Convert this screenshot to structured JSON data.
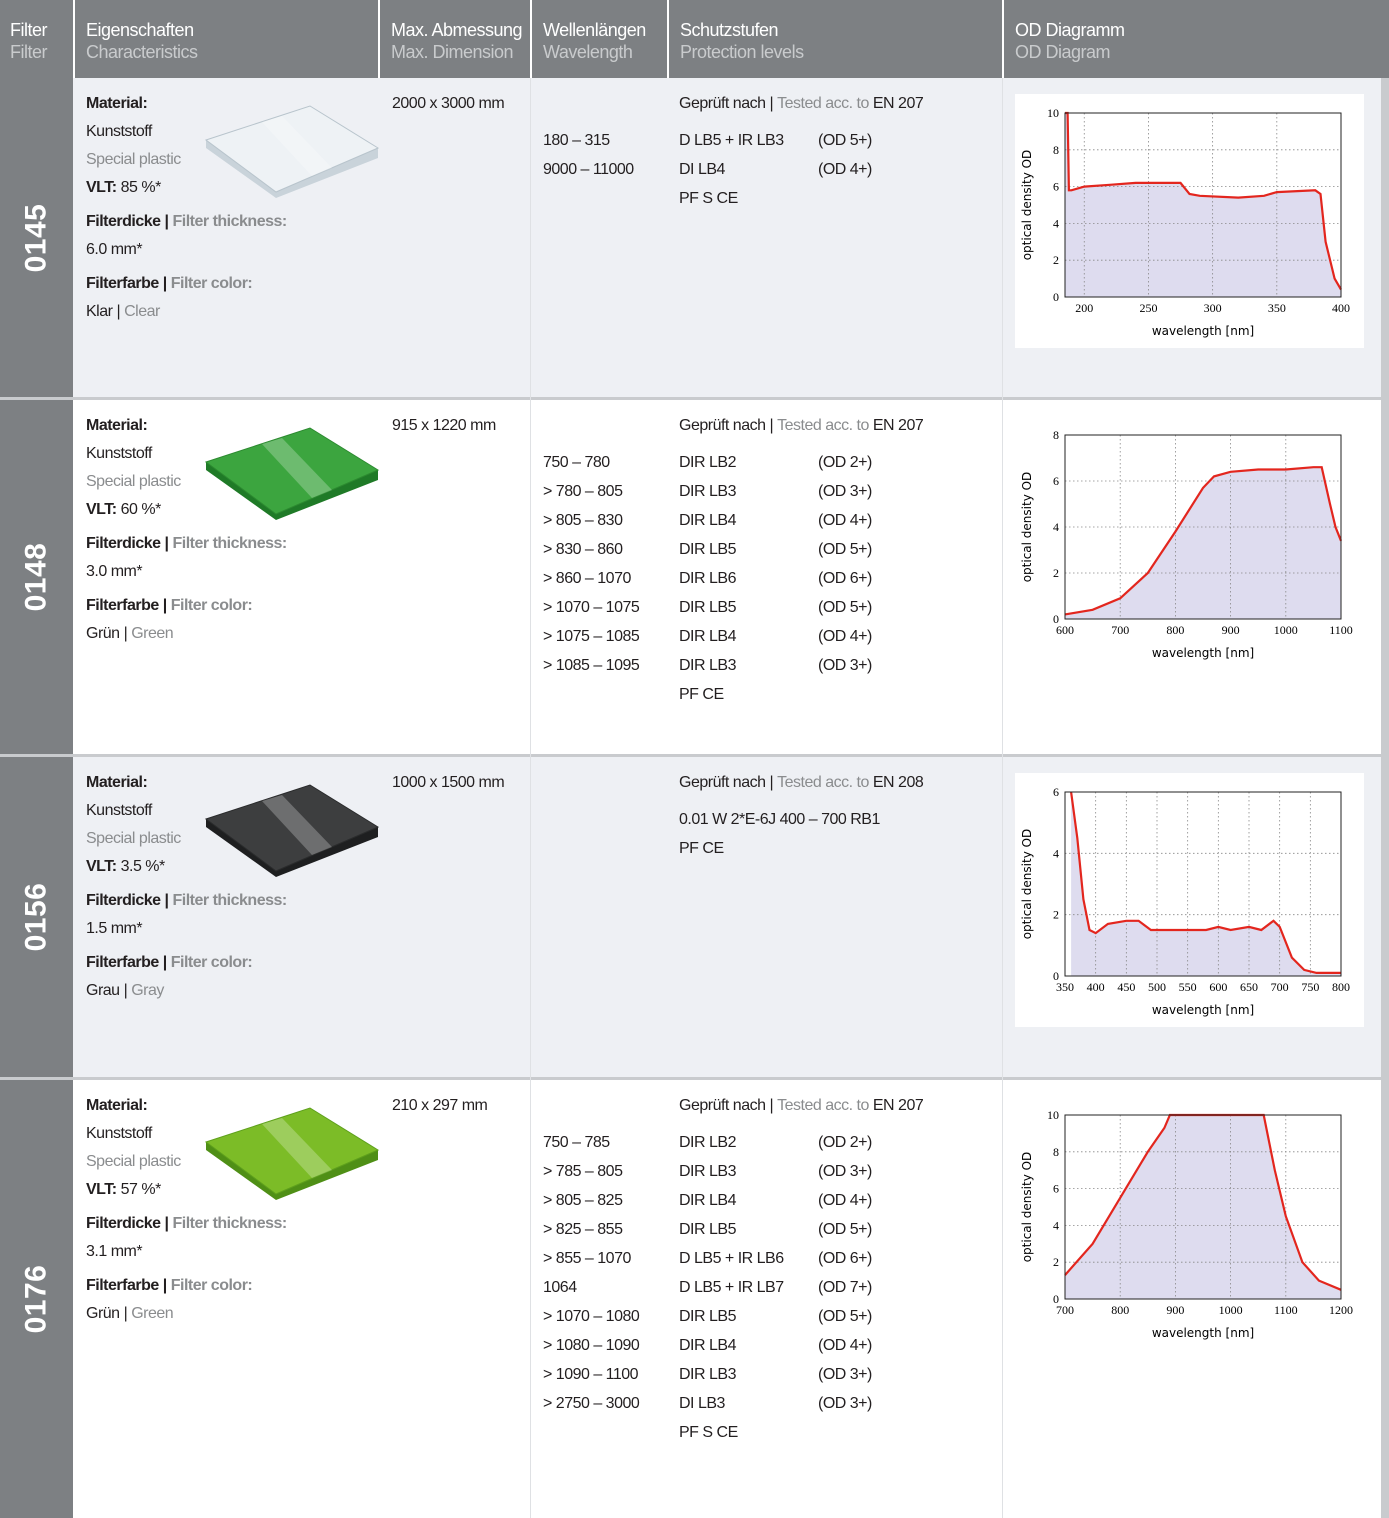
{
  "header": {
    "columns": [
      {
        "de": "Filter",
        "en": "Filter"
      },
      {
        "de": "Eigenschaften",
        "en": "Characteristics"
      },
      {
        "de": "Max. Abmessung",
        "en": "Max. Dimension"
      },
      {
        "de": "Wellenlängen",
        "en": "Wavelength"
      },
      {
        "de": "Schutzstufen",
        "en": "Protection levels"
      },
      {
        "de": "OD Diagramm",
        "en": "OD Diagram"
      }
    ]
  },
  "separator": "|",
  "rows": [
    {
      "id": "0145",
      "material_label": "Material:",
      "material_de": "Kunststoff",
      "material_en": "Special plastic",
      "vlt_label": "VLT:",
      "vlt": "85 %*",
      "thickness_label_de": "Filterdicke",
      "thickness_label_en": "Filter thickness:",
      "thickness": "6.0 mm*",
      "color_label_de": "Filterfarbe",
      "color_label_en": "Filter color:",
      "color_de": "Klar",
      "color_en": "Clear",
      "dimension": "2000 x 3000 mm",
      "tested": {
        "de": "Geprüft nach",
        "en": "Tested acc. to",
        "standard": "EN 207"
      },
      "levels": [
        {
          "wavelength": "180 – 315",
          "level": "D LB5 + IR LB3",
          "od": "(OD 5+)"
        },
        {
          "wavelength": "9000 – 11000",
          "level": "DI LB4",
          "od": "(OD 4+)"
        },
        {
          "level": "PF S CE"
        }
      ],
      "chart": {
        "type": "line",
        "y_label": "optical density OD",
        "x_label": "wavelength [nm]",
        "xlim": [
          185,
          400
        ],
        "xticks": [
          200,
          250,
          300,
          350,
          400
        ],
        "ylim": [
          0,
          10
        ],
        "yticks": [
          0,
          2,
          4,
          6,
          8,
          10
        ],
        "grid": true,
        "color": "#e3261e",
        "fill": "#dedcef",
        "x": [
          185,
          187,
          188,
          190,
          200,
          220,
          240,
          275,
          282,
          290,
          320,
          340,
          350,
          380,
          384,
          388,
          395,
          400
        ],
        "values": [
          10,
          10,
          5.8,
          5.8,
          6.0,
          6.1,
          6.2,
          6.2,
          5.6,
          5.5,
          5.4,
          5.5,
          5.7,
          5.8,
          5.6,
          3,
          1,
          0.4
        ]
      }
    },
    {
      "id": "0148",
      "material_label": "Material:",
      "material_de": "Kunststoff",
      "material_en": "Special plastic",
      "vlt_label": "VLT:",
      "vlt": "60 %*",
      "thickness_label_de": "Filterdicke",
      "thickness_label_en": "Filter thickness:",
      "thickness": "3.0 mm*",
      "color_label_de": "Filterfarbe",
      "color_label_en": "Filter color:",
      "color_de": "Grün",
      "color_en": "Green",
      "dimension": "915 x 1220 mm",
      "tested": {
        "de": "Geprüft nach",
        "en": "Tested acc. to",
        "standard": "EN 207"
      },
      "levels": [
        {
          "wavelength": "750 – 780",
          "level": "DIR LB2",
          "od": "(OD 2+)"
        },
        {
          "wavelength": "> 780 – 805",
          "level": "DIR LB3",
          "od": "(OD 3+)"
        },
        {
          "wavelength": "> 805 – 830",
          "level": "DIR LB4",
          "od": "(OD 4+)"
        },
        {
          "wavelength": "> 830 – 860",
          "level": "DIR LB5",
          "od": "(OD 5+)"
        },
        {
          "wavelength": "> 860 – 1070",
          "level": "DIR LB6",
          "od": "(OD 6+)"
        },
        {
          "wavelength": "> 1070 – 1075",
          "level": "DIR LB5",
          "od": "(OD 5+)"
        },
        {
          "wavelength": "> 1075 – 1085",
          "level": "DIR LB4",
          "od": "(OD 4+)"
        },
        {
          "wavelength": "> 1085 – 1095",
          "level": "DIR LB3",
          "od": "(OD 3+)"
        },
        {
          "level": "PF CE"
        }
      ],
      "chart": {
        "type": "line",
        "y_label": "optical density OD",
        "x_label": "wavelength [nm]",
        "xlim": [
          600,
          1100
        ],
        "xticks": [
          600,
          700,
          800,
          900,
          1000,
          1100
        ],
        "ylim": [
          0,
          8
        ],
        "yticks": [
          0,
          2,
          4,
          6,
          8
        ],
        "grid": true,
        "color": "#e3261e",
        "fill": "#dedcef",
        "x": [
          600,
          650,
          700,
          750,
          800,
          850,
          870,
          900,
          950,
          1000,
          1050,
          1065,
          1080,
          1090,
          1100
        ],
        "values": [
          0.2,
          0.4,
          0.9,
          2.0,
          3.8,
          5.7,
          6.2,
          6.4,
          6.5,
          6.5,
          6.6,
          6.6,
          5.0,
          4.0,
          3.4
        ]
      }
    },
    {
      "id": "0156",
      "material_label": "Material:",
      "material_de": "Kunststoff",
      "material_en": "Special plastic",
      "vlt_label": "VLT:",
      "vlt": "3.5 %*",
      "thickness_label_de": "Filterdicke",
      "thickness_label_en": "Filter thickness:",
      "thickness": "1.5 mm*",
      "color_label_de": "Filterfarbe",
      "color_label_en": "Filter color:",
      "color_de": "Grau",
      "color_en": "Gray",
      "dimension": "1000 x 1500 mm",
      "tested": {
        "de": "Geprüft nach",
        "en": "Tested acc. to",
        "standard": "EN 208"
      },
      "levels": [
        {
          "level": "0.01 W 2*E-6J 400 – 700 RB1"
        },
        {
          "level": "PF CE"
        }
      ],
      "chart": {
        "type": "line",
        "y_label": "optical density OD",
        "x_label": "wavelength [nm]",
        "xlim": [
          350,
          800
        ],
        "xticks": [
          350,
          400,
          450,
          500,
          550,
          600,
          650,
          700,
          750,
          800
        ],
        "ylim": [
          0,
          6
        ],
        "yticks": [
          0,
          2,
          4,
          6
        ],
        "grid": true,
        "color": "#e3261e",
        "fill": "#dedcef",
        "x": [
          360,
          370,
          380,
          390,
          400,
          420,
          450,
          470,
          490,
          520,
          550,
          580,
          600,
          620,
          650,
          670,
          690,
          700,
          720,
          740,
          760,
          800
        ],
        "values": [
          6,
          4.5,
          2.5,
          1.5,
          1.4,
          1.7,
          1.8,
          1.8,
          1.5,
          1.5,
          1.5,
          1.5,
          1.6,
          1.5,
          1.6,
          1.5,
          1.8,
          1.6,
          0.6,
          0.2,
          0.1,
          0.1
        ]
      }
    },
    {
      "id": "0176",
      "material_label": "Material:",
      "material_de": "Kunststoff",
      "material_en": "Special plastic",
      "vlt_label": "VLT:",
      "vlt": "57 %*",
      "thickness_label_de": "Filterdicke",
      "thickness_label_en": "Filter thickness:",
      "thickness": "3.1 mm*",
      "color_label_de": "Filterfarbe",
      "color_label_en": "Filter color:",
      "color_de": "Grün",
      "color_en": "Green",
      "dimension": "210 x 297 mm",
      "tested": {
        "de": "Geprüft nach",
        "en": "Tested acc. to",
        "standard": "EN 207"
      },
      "levels": [
        {
          "wavelength": "750 – 785",
          "level": "DIR LB2",
          "od": "(OD 2+)"
        },
        {
          "wavelength": "> 785 – 805",
          "level": "DIR LB3",
          "od": "(OD 3+)"
        },
        {
          "wavelength": "> 805 – 825",
          "level": "DIR LB4",
          "od": "(OD 4+)"
        },
        {
          "wavelength": "> 825 – 855",
          "level": "DIR LB5",
          "od": "(OD 5+)"
        },
        {
          "wavelength": "> 855 – 1070",
          "level": "D LB5 + IR LB6",
          "od": "(OD 6+)"
        },
        {
          "wavelength": "1064",
          "level": "D LB5 + IR LB7",
          "od": "(OD 7+)"
        },
        {
          "wavelength": "> 1070 – 1080",
          "level": "DIR LB5",
          "od": "(OD 5+)"
        },
        {
          "wavelength": "> 1080 – 1090",
          "level": "DIR LB4",
          "od": "(OD 4+)"
        },
        {
          "wavelength": "> 1090 – 1100",
          "level": "DIR LB3",
          "od": "(OD 3+)"
        },
        {
          "wavelength": "> 2750 – 3000",
          "level": "DI LB3",
          "od": "(OD 3+)"
        },
        {
          "level": "PF S CE"
        }
      ],
      "chart": {
        "type": "line",
        "y_label": "optical density OD",
        "x_label": "wavelength [nm]",
        "xlim": [
          700,
          1200
        ],
        "xticks": [
          700,
          800,
          900,
          1000,
          1100,
          1200
        ],
        "ylim": [
          0,
          10
        ],
        "yticks": [
          0,
          2,
          4,
          6,
          8,
          10
        ],
        "grid": true,
        "color": "#e3261e",
        "fill": "#dedcef",
        "x": [
          700,
          750,
          800,
          850,
          880,
          890,
          1060,
          1080,
          1100,
          1130,
          1160,
          1200
        ],
        "values": [
          1.3,
          3,
          5.5,
          8,
          9.3,
          10,
          10,
          7,
          4.5,
          2,
          1,
          0.5
        ]
      }
    }
  ]
}
